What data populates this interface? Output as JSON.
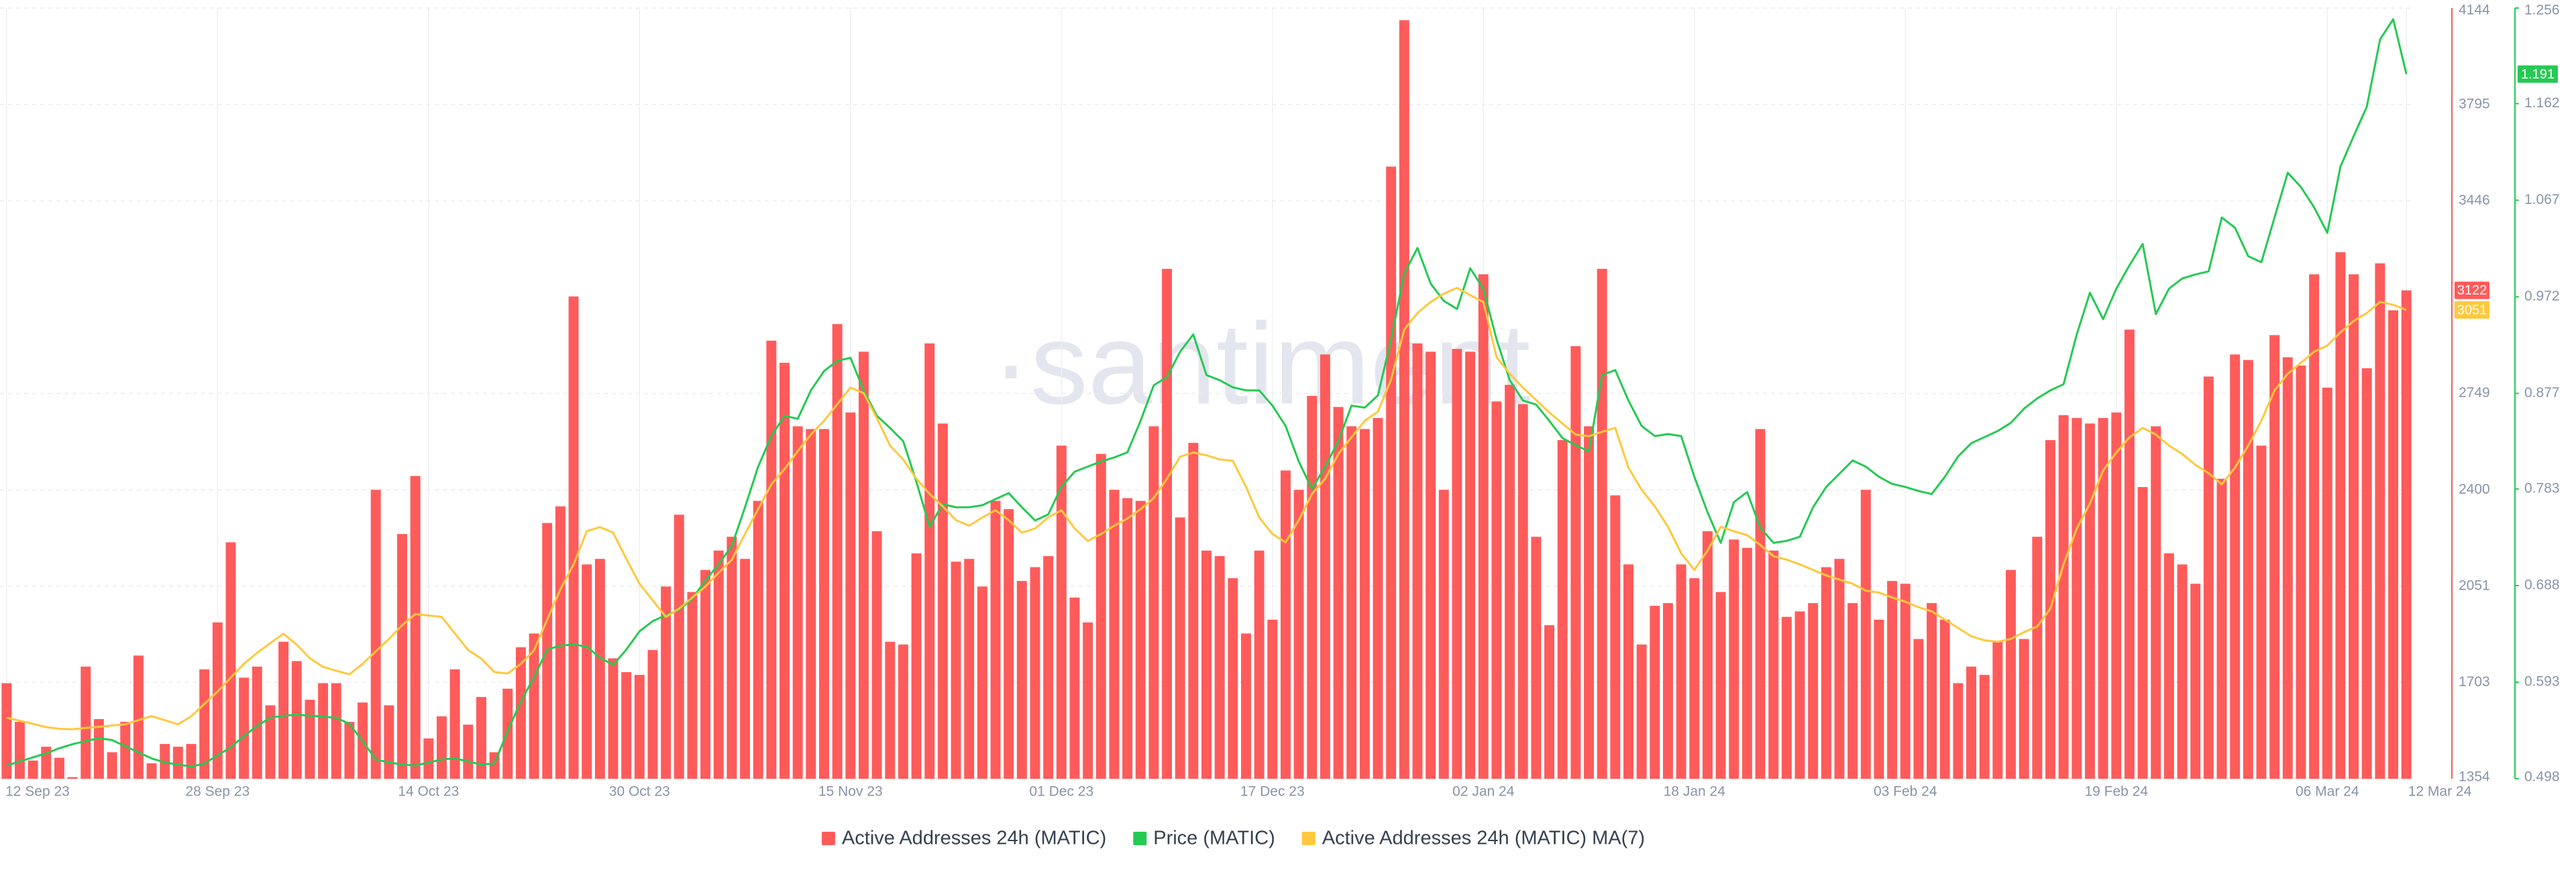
{
  "chart_data": {
    "type": "bar",
    "watermark": "·santiment",
    "categories": [
      "12 Sep 23",
      null,
      null,
      null,
      null,
      null,
      null,
      null,
      null,
      null,
      null,
      null,
      null,
      null,
      null,
      null,
      "28 Sep 23",
      null,
      null,
      null,
      null,
      null,
      null,
      null,
      null,
      null,
      null,
      null,
      null,
      null,
      null,
      null,
      "14 Oct 23",
      null,
      null,
      null,
      null,
      null,
      null,
      null,
      null,
      null,
      null,
      null,
      null,
      null,
      null,
      null,
      "30 Oct 23",
      null,
      null,
      null,
      null,
      null,
      null,
      null,
      null,
      null,
      null,
      null,
      null,
      null,
      null,
      null,
      "15 Nov 23",
      null,
      null,
      null,
      null,
      null,
      null,
      null,
      null,
      null,
      null,
      null,
      null,
      null,
      null,
      null,
      "01 Dec 23",
      null,
      null,
      null,
      null,
      null,
      null,
      null,
      null,
      null,
      null,
      null,
      null,
      null,
      null,
      null,
      "17 Dec 23",
      null,
      null,
      null,
      null,
      null,
      null,
      null,
      null,
      null,
      null,
      null,
      null,
      null,
      null,
      null,
      "02 Jan 24",
      null,
      null,
      null,
      null,
      null,
      null,
      null,
      null,
      null,
      null,
      null,
      null,
      null,
      null,
      null,
      "18 Jan 24",
      null,
      null,
      null,
      null,
      null,
      null,
      null,
      null,
      null,
      null,
      null,
      null,
      null,
      null,
      null,
      "03 Feb 24",
      null,
      null,
      null,
      null,
      null,
      null,
      null,
      null,
      null,
      null,
      null,
      null,
      null,
      null,
      null,
      "19 Feb 24",
      null,
      null,
      null,
      null,
      null,
      null,
      null,
      null,
      null,
      null,
      null,
      null,
      null,
      null,
      null,
      "06 Mar 24",
      null,
      null,
      null,
      null,
      null,
      "12 Mar 24"
    ],
    "ylim": [
      1354,
      4144
    ],
    "yticks": [
      1354,
      1703,
      2051,
      2400,
      2749,
      3446,
      3795,
      4144
    ],
    "y2lim": [
      0.498,
      1.256
    ],
    "y2ticks": [
      0.498,
      0.593,
      0.688,
      0.783,
      0.877,
      0.972,
      1.067,
      1.162,
      1.256
    ],
    "grid": true,
    "legend": "bottom",
    "series": [
      {
        "name": "Active Addresses 24h (MATIC)",
        "type": "bar",
        "color": "#ff5b5b",
        "values": [
          1700,
          1560,
          1420,
          1470,
          1430,
          1360,
          1760,
          1570,
          1450,
          1560,
          1800,
          1410,
          1480,
          1470,
          1480,
          1750,
          1920,
          2210,
          1720,
          1760,
          1620,
          1850,
          1780,
          1640,
          1700,
          1700,
          1560,
          1630,
          2400,
          1620,
          2240,
          2450,
          1500,
          1580,
          1750,
          1550,
          1650,
          1450,
          1680,
          1830,
          1880,
          2280,
          2340,
          3100,
          2130,
          2150,
          1790,
          1740,
          1730,
          1820,
          2050,
          2310,
          2030,
          2110,
          2180,
          2230,
          2150,
          2360,
          2940,
          2860,
          2630,
          2620,
          2620,
          3000,
          2680,
          2900,
          2250,
          1850,
          1840,
          2170,
          2930,
          2640,
          2140,
          2150,
          2050,
          2360,
          2330,
          2070,
          2120,
          2160,
          2560,
          2010,
          1920,
          2530,
          2400,
          2370,
          2360,
          2630,
          3200,
          2300,
          2570,
          2180,
          2160,
          2080,
          1880,
          2180,
          1930,
          2470,
          2400,
          2740,
          2890,
          2700,
          2630,
          2620,
          2660,
          3570,
          4100,
          2930,
          2900,
          2400,
          2910,
          2900,
          3180,
          2720,
          2780,
          2710,
          2230,
          1910,
          2580,
          2920,
          2630,
          3200,
          2380,
          2130,
          1840,
          1980,
          1990,
          2130,
          2080,
          2250,
          2030,
          2220,
          2190,
          2620,
          2180,
          1940,
          1960,
          1990,
          2120,
          2150,
          1990,
          2400,
          1930,
          2070,
          2060,
          1860,
          1990,
          1930,
          1700,
          1760,
          1730,
          1850,
          2110,
          1860,
          2230,
          2580,
          2670,
          2660,
          2640,
          2660,
          2680,
          2980,
          2410,
          2630,
          2170,
          2130,
          2060,
          2810,
          2440,
          2890,
          2870,
          2560,
          2960,
          2880,
          2850,
          3180,
          2770,
          3260,
          3180,
          2840,
          3220,
          3050,
          3122
        ]
      },
      {
        "name": "Price (MATIC)",
        "type": "line",
        "axis": "y2",
        "color": "#26c953",
        "values": [
          0.511,
          0.515,
          0.519,
          0.523,
          0.528,
          0.532,
          0.535,
          0.538,
          0.536,
          0.53,
          0.524,
          0.518,
          0.514,
          0.512,
          0.51,
          0.513,
          0.521,
          0.529,
          0.54,
          0.55,
          0.558,
          0.56,
          0.561,
          0.56,
          0.559,
          0.558,
          0.552,
          0.535,
          0.517,
          0.514,
          0.512,
          0.511,
          0.514,
          0.517,
          0.518,
          0.515,
          0.512,
          0.513,
          0.545,
          0.574,
          0.598,
          0.625,
          0.629,
          0.63,
          0.628,
          0.617,
          0.61,
          0.625,
          0.643,
          0.653,
          0.659,
          0.664,
          0.675,
          0.693,
          0.709,
          0.727,
          0.765,
          0.805,
          0.835,
          0.855,
          0.852,
          0.88,
          0.899,
          0.909,
          0.912,
          0.88,
          0.855,
          0.843,
          0.83,
          0.79,
          0.746,
          0.768,
          0.765,
          0.765,
          0.767,
          0.773,
          0.779,
          0.765,
          0.752,
          0.758,
          0.785,
          0.8,
          0.805,
          0.81,
          0.814,
          0.819,
          0.85,
          0.885,
          0.893,
          0.918,
          0.935,
          0.895,
          0.89,
          0.883,
          0.88,
          0.88,
          0.865,
          0.845,
          0.81,
          0.783,
          0.805,
          0.83,
          0.865,
          0.863,
          0.875,
          0.93,
          0.995,
          1.02,
          0.985,
          0.968,
          0.96,
          1.0,
          0.98,
          0.93,
          0.89,
          0.87,
          0.866,
          0.85,
          0.833,
          0.826,
          0.82,
          0.895,
          0.9,
          0.87,
          0.845,
          0.835,
          0.837,
          0.835,
          0.795,
          0.76,
          0.73,
          0.77,
          0.78,
          0.745,
          0.73,
          0.732,
          0.736,
          0.765,
          0.785,
          0.798,
          0.811,
          0.805,
          0.795,
          0.788,
          0.785,
          0.781,
          0.778,
          0.795,
          0.815,
          0.828,
          0.834,
          0.84,
          0.848,
          0.862,
          0.872,
          0.88,
          0.886,
          0.935,
          0.976,
          0.95,
          0.98,
          1.003,
          1.024,
          0.955,
          0.98,
          0.99,
          0.994,
          0.997,
          1.05,
          1.04,
          1.012,
          1.006,
          1.05,
          1.094,
          1.08,
          1.06,
          1.035,
          1.1,
          1.13,
          1.159,
          1.225,
          1.245,
          1.191
        ]
      },
      {
        "name": "Active Addresses 24h (MATIC) MA(7)",
        "type": "line",
        "color": "#ffc83d",
        "values": [
          1575,
          1564,
          1553,
          1541,
          1535,
          1533,
          1538,
          1542,
          1547,
          1551,
          1566,
          1581,
          1566,
          1551,
          1580,
          1625,
          1670,
          1720,
          1770,
          1810,
          1845,
          1879,
          1840,
          1790,
          1759,
          1745,
          1732,
          1770,
          1815,
          1860,
          1910,
          1950,
          1945,
          1940,
          1880,
          1820,
          1789,
          1740,
          1735,
          1770,
          1819,
          1930,
          2040,
          2130,
          2250,
          2265,
          2245,
          2150,
          2060,
          2000,
          1940,
          1970,
          2010,
          2050,
          2100,
          2147,
          2240,
          2330,
          2420,
          2475,
          2540,
          2600,
          2650,
          2710,
          2770,
          2750,
          2660,
          2560,
          2510,
          2440,
          2385,
          2340,
          2290,
          2270,
          2300,
          2326,
          2290,
          2245,
          2260,
          2300,
          2326,
          2260,
          2215,
          2240,
          2270,
          2296,
          2330,
          2370,
          2440,
          2520,
          2535,
          2525,
          2510,
          2505,
          2410,
          2300,
          2240,
          2210,
          2290,
          2385,
          2440,
          2530,
          2590,
          2650,
          2683,
          2800,
          2980,
          3040,
          3080,
          3110,
          3131,
          3105,
          3080,
          2880,
          2820,
          2770,
          2725,
          2680,
          2640,
          2600,
          2594,
          2610,
          2624,
          2480,
          2400,
          2340,
          2266,
          2170,
          2110,
          2180,
          2266,
          2250,
          2236,
          2200,
          2160,
          2147,
          2130,
          2110,
          2090,
          2075,
          2060,
          2035,
          2028,
          2010,
          1995,
          1975,
          1960,
          1930,
          1900,
          1870,
          1855,
          1850,
          1860,
          1885,
          1905,
          1970,
          2130,
          2260,
          2350,
          2470,
          2535,
          2590,
          2624,
          2600,
          2560,
          2530,
          2490,
          2460,
          2420,
          2480,
          2560,
          2650,
          2760,
          2820,
          2860,
          2900,
          2922,
          2970,
          3011,
          3040,
          3080,
          3070,
          3051
        ]
      }
    ]
  }
}
